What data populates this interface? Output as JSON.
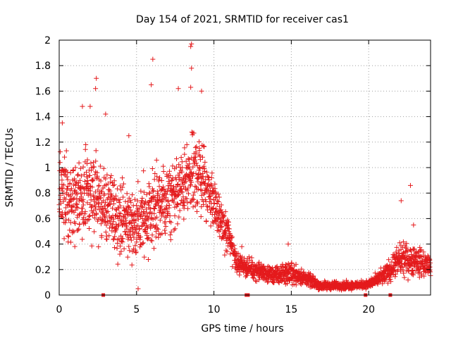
{
  "chart_data": {
    "type": "scatter",
    "title": "Day 154 of 2021, SRMTID for receiver cas1",
    "xlabel": "GPS time / hours",
    "ylabel": "SRMTID / TECUs",
    "xlim": [
      0,
      24
    ],
    "ylim": [
      0,
      2
    ],
    "xticks": [
      0,
      5,
      10,
      15,
      20
    ],
    "yticks": [
      0,
      0.2,
      0.4,
      0.6,
      0.8,
      1,
      1.2,
      1.4,
      1.6,
      1.8,
      2
    ],
    "xtick_labels": [
      "0",
      "5",
      "10",
      "15",
      "20"
    ],
    "ytick_labels": [
      "0",
      "0.2",
      "0.4",
      "0.6",
      "0.8",
      "1",
      "1.2",
      "1.4",
      "1.6",
      "1.8",
      "2"
    ],
    "grid": true,
    "marker": "+",
    "color": "#e41a1c",
    "gap_markers_x": [
      2.85,
      12.1,
      12.2,
      19.8,
      21.4
    ],
    "series": [
      {
        "name": "SRMTID",
        "envelope": [
          {
            "x": 0.0,
            "low": 0.35,
            "high": 1.25
          },
          {
            "x": 1.0,
            "low": 0.3,
            "high": 1.15
          },
          {
            "x": 2.0,
            "low": 0.25,
            "high": 1.35
          },
          {
            "x": 3.0,
            "low": 0.3,
            "high": 1.1
          },
          {
            "x": 4.0,
            "low": 0.2,
            "high": 1.0
          },
          {
            "x": 5.0,
            "low": 0.15,
            "high": 0.95
          },
          {
            "x": 6.0,
            "low": 0.15,
            "high": 1.2
          },
          {
            "x": 7.0,
            "low": 0.35,
            "high": 1.1
          },
          {
            "x": 8.0,
            "low": 0.45,
            "high": 1.25
          },
          {
            "x": 9.0,
            "low": 0.5,
            "high": 1.45
          },
          {
            "x": 10.0,
            "low": 0.45,
            "high": 1.0
          },
          {
            "x": 10.5,
            "low": 0.35,
            "high": 0.75
          },
          {
            "x": 11.0,
            "low": 0.2,
            "high": 0.7
          },
          {
            "x": 11.5,
            "low": 0.15,
            "high": 0.35
          },
          {
            "x": 12.5,
            "low": 0.1,
            "high": 0.3
          },
          {
            "x": 14.0,
            "low": 0.05,
            "high": 0.25
          },
          {
            "x": 15.0,
            "low": 0.05,
            "high": 0.3
          },
          {
            "x": 16.0,
            "low": 0.05,
            "high": 0.2
          },
          {
            "x": 17.0,
            "low": 0.02,
            "high": 0.12
          },
          {
            "x": 18.0,
            "low": 0.03,
            "high": 0.12
          },
          {
            "x": 19.0,
            "low": 0.03,
            "high": 0.12
          },
          {
            "x": 20.0,
            "low": 0.04,
            "high": 0.13
          },
          {
            "x": 21.0,
            "low": 0.05,
            "high": 0.25
          },
          {
            "x": 22.0,
            "low": 0.1,
            "high": 0.45
          },
          {
            "x": 23.0,
            "low": 0.1,
            "high": 0.45
          },
          {
            "x": 24.0,
            "low": 0.1,
            "high": 0.35
          }
        ],
        "peaks": [
          {
            "x": 0.2,
            "y": 1.35
          },
          {
            "x": 1.5,
            "y": 1.48
          },
          {
            "x": 2.0,
            "y": 1.48
          },
          {
            "x": 2.35,
            "y": 1.62
          },
          {
            "x": 2.4,
            "y": 1.7
          },
          {
            "x": 3.0,
            "y": 1.42
          },
          {
            "x": 4.5,
            "y": 1.25
          },
          {
            "x": 5.95,
            "y": 1.65
          },
          {
            "x": 6.05,
            "y": 1.85
          },
          {
            "x": 7.7,
            "y": 1.62
          },
          {
            "x": 8.5,
            "y": 1.63
          },
          {
            "x": 8.55,
            "y": 1.78
          },
          {
            "x": 8.5,
            "y": 1.95
          },
          {
            "x": 8.55,
            "y": 1.97
          },
          {
            "x": 9.2,
            "y": 1.6
          },
          {
            "x": 5.1,
            "y": 0.05
          },
          {
            "x": 14.8,
            "y": 0.4
          },
          {
            "x": 22.7,
            "y": 0.86
          },
          {
            "x": 22.1,
            "y": 0.74
          },
          {
            "x": 22.9,
            "y": 0.55
          },
          {
            "x": 11.8,
            "y": 0.38
          }
        ]
      }
    ]
  }
}
